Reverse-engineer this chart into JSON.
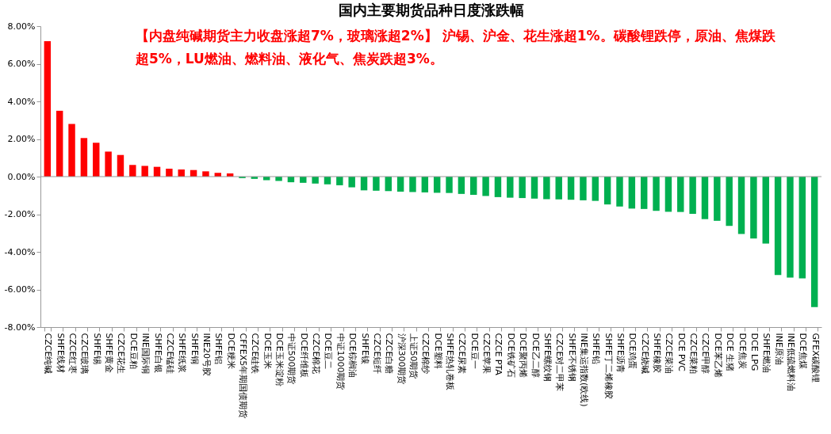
{
  "chart_data": {
    "type": "bar",
    "title": "国内主要期货品种日度涨跌幅",
    "annotations": [
      "【内盘纯碱期货主力收盘涨超7%，玻璃涨超2%】 沪锡、沪金、花生涨超1%。碳酸锂跌停，原油、焦煤跌超5%，LU燃油、燃料油、液化气、焦炭跌超3%。"
    ],
    "categories": [
      "CZCE纯碱",
      "SHFE线材",
      "CZCE红枣",
      "CZCE玻璃",
      "SHFE锡",
      "SHFE黄金",
      "CZCE花生",
      "DCE豆粕",
      "INE国际铜",
      "SHFE白银",
      "CZCE锰硅",
      "SHFE纸浆",
      "SHFE铜",
      "INE20号胶",
      "SHFE铝",
      "DCE粳米",
      "CFFEX5年期国债期货",
      "CZCE硅铁",
      "DCE玉米",
      "DCE玉米淀粉",
      "中证500期货",
      "DCE纤维板",
      "CZCE棉花",
      "DCE豆二",
      "中证1000期货",
      "DCE棕榈油",
      "SHFE镍",
      "CZCE短纤",
      "CZCE白糖",
      "沪深300期货",
      "上证50期货",
      "CZCE棉纱",
      "DCE塑料",
      "SHFE热轧卷板",
      "CZCE尿素",
      "DCE豆一",
      "CZCE苹果",
      "CZCE PTA",
      "DCE铁矿石",
      "DCE聚丙烯",
      "DCE乙二醇",
      "SHFE螺纹钢",
      "CZCE对二甲苯",
      "SHFE不锈钢",
      "INE集运指数(欧线)",
      "SHFE铅",
      "SHFE丁二烯橡胶",
      "SHFE沥青",
      "DCE鸡蛋",
      "CZCE烧碱",
      "SHFE橡胶",
      "CZCE菜油",
      "DCE PVC",
      "CZCE菜粕",
      "CZCE甲醇",
      "DCE苯乙烯",
      "DCE 生猪",
      "DCE焦炭",
      "DCE LPG",
      "SHFE燃油",
      "INE原油",
      "INE低硫燃料油",
      "DCE焦煤",
      "GFEX碳酸锂"
    ],
    "values": [
      7.2,
      3.5,
      2.8,
      2.05,
      1.8,
      1.33,
      1.15,
      0.62,
      0.57,
      0.52,
      0.42,
      0.38,
      0.35,
      0.28,
      0.2,
      0.17,
      -0.08,
      -0.12,
      -0.19,
      -0.23,
      -0.3,
      -0.33,
      -0.37,
      -0.41,
      -0.46,
      -0.57,
      -0.73,
      -0.75,
      -0.77,
      -0.8,
      -0.82,
      -0.84,
      -0.86,
      -0.87,
      -0.92,
      -0.97,
      -1.03,
      -1.09,
      -1.12,
      -1.14,
      -1.17,
      -1.2,
      -1.21,
      -1.23,
      -1.26,
      -1.29,
      -1.48,
      -1.59,
      -1.7,
      -1.72,
      -1.82,
      -1.87,
      -1.88,
      -1.98,
      -2.26,
      -2.35,
      -2.62,
      -3.05,
      -3.29,
      -3.56,
      -5.23,
      -5.37,
      -5.41,
      -6.94
    ],
    "colors": [
      "#ff0000",
      "#ff0000",
      "#ff0000",
      "#ff0000",
      "#ff0000",
      "#ff0000",
      "#ff0000",
      "#ff0000",
      "#ff0000",
      "#ff0000",
      "#ff0000",
      "#ff0000",
      "#ff0000",
      "#ff0000",
      "#ff0000",
      "#ff0000",
      "#00b050",
      "#00b050",
      "#00b050",
      "#00b050",
      "#00b050",
      "#00b050",
      "#00b050",
      "#00b050",
      "#00b050",
      "#00b050",
      "#00b050",
      "#00b050",
      "#00b050",
      "#00b050",
      "#00b050",
      "#00b050",
      "#00b050",
      "#00b050",
      "#00b050",
      "#00b050",
      "#00b050",
      "#00b050",
      "#00b050",
      "#00b050",
      "#00b050",
      "#00b050",
      "#00b050",
      "#00b050",
      "#00b050",
      "#00b050",
      "#00b050",
      "#00b050",
      "#00b050",
      "#00b050",
      "#00b050",
      "#00b050",
      "#00b050",
      "#00b050",
      "#00b050",
      "#00b050",
      "#00b050",
      "#00b050",
      "#00b050",
      "#00b050",
      "#00b050",
      "#00b050",
      "#00b050",
      "#00b050"
    ],
    "ylim": [
      -8,
      8
    ],
    "yticks": [
      {
        "value": -8,
        "label": "-8.00%"
      },
      {
        "value": -6,
        "label": "-6.00%"
      },
      {
        "value": -4,
        "label": "-4.00%"
      },
      {
        "value": -2,
        "label": "-2.00%"
      },
      {
        "value": 0,
        "label": "0.00%"
      },
      {
        "value": 2,
        "label": "2.00%"
      },
      {
        "value": 4,
        "label": "4.00%"
      },
      {
        "value": 6,
        "label": "6.00%"
      },
      {
        "value": 8,
        "label": "8.00%"
      }
    ],
    "ref_lines": [
      {
        "axis": "y",
        "value": 0,
        "color": "#999999"
      }
    ],
    "grid": false
  }
}
